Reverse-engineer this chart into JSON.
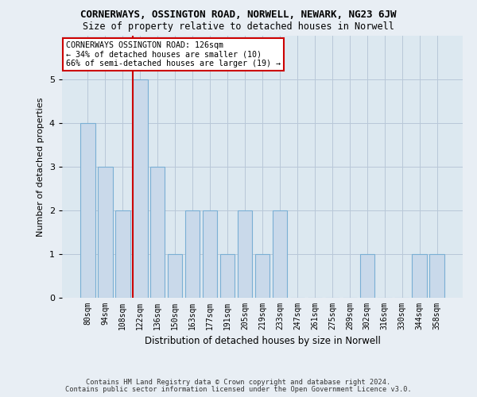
{
  "title1": "CORNERWAYS, OSSINGTON ROAD, NORWELL, NEWARK, NG23 6JW",
  "title2": "Size of property relative to detached houses in Norwell",
  "xlabel": "Distribution of detached houses by size in Norwell",
  "ylabel": "Number of detached properties",
  "categories": [
    "80sqm",
    "94sqm",
    "108sqm",
    "122sqm",
    "136sqm",
    "150sqm",
    "163sqm",
    "177sqm",
    "191sqm",
    "205sqm",
    "219sqm",
    "233sqm",
    "247sqm",
    "261sqm",
    "275sqm",
    "289sqm",
    "302sqm",
    "316sqm",
    "330sqm",
    "344sqm",
    "358sqm"
  ],
  "values": [
    4,
    3,
    2,
    5,
    3,
    1,
    2,
    2,
    1,
    2,
    1,
    2,
    0,
    0,
    0,
    0,
    1,
    0,
    0,
    1,
    1
  ],
  "bar_color": "#c9d9ea",
  "bar_edgecolor": "#7aafd4",
  "vline_color": "#cc0000",
  "vline_x": 3.0,
  "annotation_box_text": "CORNERWAYS OSSINGTON ROAD: 126sqm\n← 34% of detached houses are smaller (10)\n66% of semi-detached houses are larger (19) →",
  "ylim": [
    0,
    6
  ],
  "yticks": [
    0,
    1,
    2,
    3,
    4,
    5
  ],
  "footer1": "Contains HM Land Registry data © Crown copyright and database right 2024.",
  "footer2": "Contains public sector information licensed under the Open Government Licence v3.0.",
  "background_color": "#e8eef4",
  "plot_bg_color": "#dce8f0"
}
